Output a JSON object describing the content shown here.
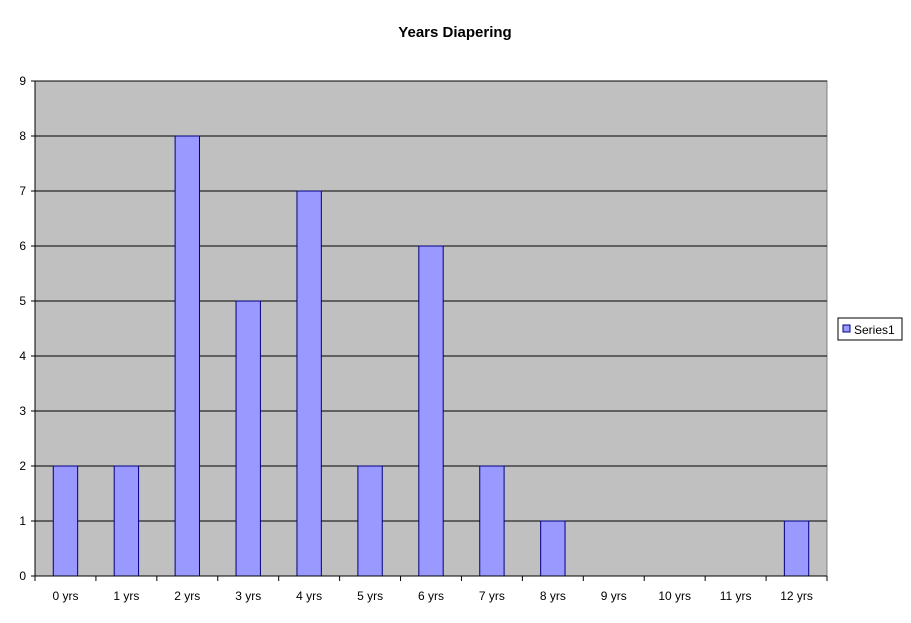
{
  "chart_data": {
    "type": "bar",
    "title": "Years Diapering",
    "xlabel": "",
    "ylabel": "",
    "categories": [
      "0 yrs",
      "1 yrs",
      "2 yrs",
      "3 yrs",
      "4 yrs",
      "5 yrs",
      "6 yrs",
      "7 yrs",
      "8 yrs",
      "9 yrs",
      "10 yrs",
      "11 yrs",
      "12 yrs"
    ],
    "series": [
      {
        "name": "Series1",
        "values": [
          2,
          2,
          8,
          5,
          7,
          2,
          6,
          2,
          1,
          0,
          0,
          0,
          1
        ],
        "color": "#9999FF"
      }
    ],
    "ylim": [
      0,
      9
    ],
    "yticks": [
      0,
      1,
      2,
      3,
      4,
      5,
      6,
      7,
      8,
      9
    ],
    "grid": true,
    "legend_position": "right",
    "plot_background": "#C0C0C0",
    "bar_border_color": "#000080"
  }
}
